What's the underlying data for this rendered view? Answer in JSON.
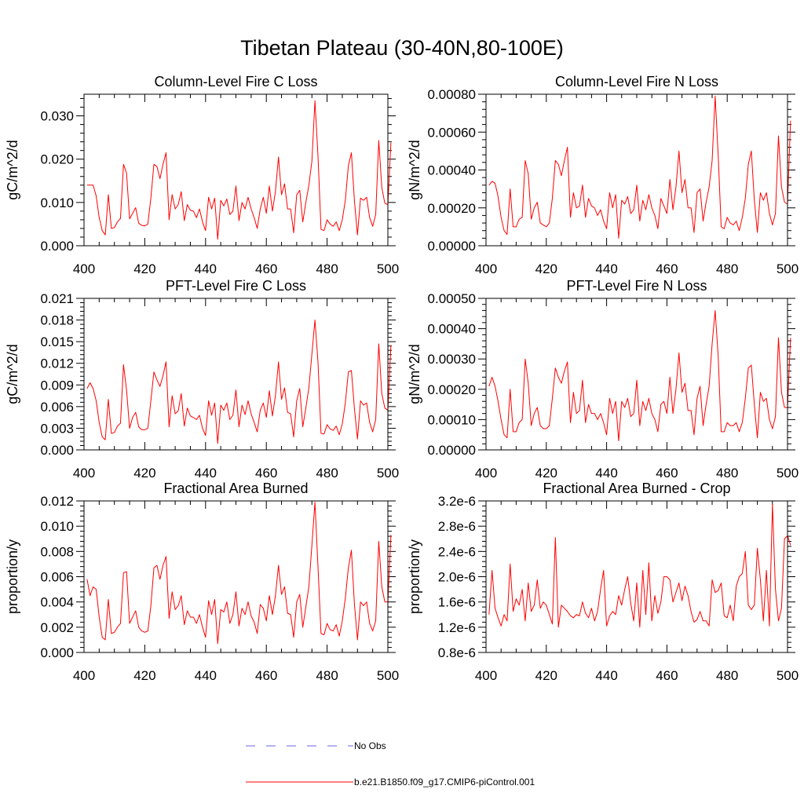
{
  "title": "Tibetan Plateau (30-40N,80-100E)",
  "colors": {
    "model": "#ff0000",
    "obs": "#6a6adf",
    "axis": "#000000"
  },
  "legend": {
    "obs_label": "No Obs",
    "model_label": "b.e21.B1850.f09_g17.CMIP6-piControl.001"
  },
  "chart_data": [
    {
      "type": "line",
      "title": "Column-Level Fire C Loss",
      "xlabel": "",
      "ylabel": "gC/m^2/d",
      "xlim": [
        400,
        500
      ],
      "ylim": [
        0,
        0.035
      ],
      "xticks": [
        400,
        420,
        440,
        460,
        480,
        500
      ],
      "xtick_labels": [
        "400",
        "420",
        "440",
        "460",
        "480",
        "500"
      ],
      "yticks": [
        0,
        0.01,
        0.02,
        0.03
      ],
      "ytick_labels": [
        "0.000",
        "0.010",
        "0.020",
        "0.030"
      ],
      "series": [
        {
          "name": "b.e21.B1850.f09_g17.CMIP6-piControl.001",
          "x_start": 401,
          "values": [
            0.014,
            0.014,
            0.014,
            0.0115,
            0.0065,
            0.0035,
            0.0025,
            0.0118,
            0.004,
            0.0042,
            0.0055,
            0.0063,
            0.0188,
            0.0168,
            0.0062,
            0.0075,
            0.0088,
            0.0052,
            0.0047,
            0.0046,
            0.005,
            0.011,
            0.0188,
            0.0183,
            0.0155,
            0.0188,
            0.0215,
            0.006,
            0.0118,
            0.0085,
            0.0095,
            0.0125,
            0.0058,
            0.0095,
            0.0082,
            0.008,
            0.0065,
            0.0085,
            0.0055,
            0.0035,
            0.0112,
            0.0085,
            0.011,
            0.0015,
            0.0105,
            0.0092,
            0.0108,
            0.0072,
            0.008,
            0.0138,
            0.0058,
            0.01,
            0.0085,
            0.0112,
            0.0085,
            0.0065,
            0.004,
            0.0085,
            0.0112,
            0.0075,
            0.0138,
            0.008,
            0.0125,
            0.0205,
            0.0118,
            0.0143,
            0.0085,
            0.0085,
            0.003,
            0.0118,
            0.0128,
            0.0055,
            0.01,
            0.014,
            0.0195,
            0.0335,
            0.0208,
            0.0038,
            0.0035,
            0.006,
            0.005,
            0.0045,
            0.0055,
            0.0035,
            0.006,
            0.0105,
            0.0185,
            0.0215,
            0.0103,
            0.0025,
            0.011,
            0.0105,
            0.0112,
            0.0065,
            0.0045,
            0.0072,
            0.0243,
            0.0135,
            0.0098,
            0.0095,
            0.0238
          ]
        }
      ]
    },
    {
      "type": "line",
      "title": "Column-Level Fire N Loss",
      "xlabel": "",
      "ylabel": "gN/m^2/d",
      "xlim": [
        400,
        500
      ],
      "ylim": [
        0,
        0.0008
      ],
      "xticks": [
        400,
        420,
        440,
        460,
        480,
        500
      ],
      "xtick_labels": [
        "400",
        "420",
        "440",
        "460",
        "480",
        "500"
      ],
      "yticks": [
        0,
        0.0002,
        0.0004,
        0.0006,
        0.0008
      ],
      "ytick_labels": [
        "0.00000",
        "0.00020",
        "0.00040",
        "0.00060",
        "0.00080"
      ],
      "series": [
        {
          "name": "b.e21.B1850.f09_g17.CMIP6-piControl.001",
          "x_start": 401,
          "values": [
            0.00032,
            0.00034,
            0.00033,
            0.00026,
            0.00015,
            8e-05,
            6e-05,
            0.0003,
            0.0001,
            0.0001,
            0.00014,
            0.00015,
            0.00045,
            0.00038,
            0.00014,
            0.0002,
            0.00023,
            0.00012,
            0.00011,
            0.0001,
            0.00012,
            0.00025,
            0.00045,
            0.00043,
            0.00037,
            0.00045,
            0.00052,
            0.00015,
            0.00028,
            0.0002,
            0.00021,
            0.00032,
            0.00015,
            0.00025,
            0.00021,
            0.0002,
            0.00016,
            0.00019,
            0.00013,
            9e-05,
            0.00028,
            0.0002,
            0.00027,
            4e-05,
            0.00024,
            0.00022,
            0.00026,
            0.00017,
            0.00019,
            0.00032,
            0.00013,
            0.00024,
            0.00019,
            0.00027,
            0.0002,
            0.00016,
            9e-05,
            0.00025,
            0.00021,
            0.00017,
            0.00035,
            0.00019,
            0.00031,
            0.0005,
            0.00028,
            0.00035,
            0.0002,
            0.0002,
            7e-05,
            0.00028,
            0.0003,
            0.00013,
            0.00023,
            0.00031,
            0.00045,
            0.00079,
            0.00048,
            0.0001,
            9e-05,
            0.00015,
            0.00012,
            0.00011,
            0.00013,
            8e-05,
            0.00015,
            0.00025,
            0.00043,
            0.0005,
            0.00024,
            7e-05,
            0.00028,
            0.00024,
            0.00028,
            0.00017,
            0.00011,
            0.00017,
            0.00058,
            0.00031,
            0.00023,
            0.00022,
            0.00066
          ]
        }
      ]
    },
    {
      "type": "line",
      "title": "PFT-Level Fire C Loss",
      "xlabel": "",
      "ylabel": "gC/m^2/d",
      "xlim": [
        400,
        500
      ],
      "ylim": [
        0,
        0.021
      ],
      "xticks": [
        400,
        420,
        440,
        460,
        480,
        500
      ],
      "xtick_labels": [
        "400",
        "420",
        "440",
        "460",
        "480",
        "500"
      ],
      "yticks": [
        0,
        0.003,
        0.006,
        0.009,
        0.012,
        0.015,
        0.018,
        0.021
      ],
      "ytick_labels": [
        "0.000",
        "0.003",
        "0.006",
        "0.009",
        "0.012",
        "0.015",
        "0.018",
        "0.021"
      ],
      "series": [
        {
          "name": "b.e21.B1850.f09_g17.CMIP6-piControl.001",
          "x_start": 401,
          "values": [
            0.0085,
            0.0093,
            0.0085,
            0.0068,
            0.0038,
            0.0018,
            0.0014,
            0.007,
            0.0023,
            0.0024,
            0.0033,
            0.0037,
            0.0118,
            0.0083,
            0.003,
            0.0045,
            0.0052,
            0.0032,
            0.0028,
            0.0028,
            0.003,
            0.0068,
            0.0108,
            0.0097,
            0.0088,
            0.0103,
            0.0122,
            0.0032,
            0.0075,
            0.005,
            0.0054,
            0.0078,
            0.0033,
            0.0058,
            0.0047,
            0.0045,
            0.0042,
            0.0048,
            0.003,
            0.002,
            0.0068,
            0.0048,
            0.0065,
            0.0009,
            0.0062,
            0.0055,
            0.0065,
            0.0042,
            0.0048,
            0.0083,
            0.0032,
            0.0062,
            0.0049,
            0.0068,
            0.005,
            0.0038,
            0.0025,
            0.0055,
            0.0065,
            0.0045,
            0.0082,
            0.0047,
            0.0075,
            0.0122,
            0.007,
            0.0086,
            0.0052,
            0.005,
            0.0018,
            0.0068,
            0.0085,
            0.0032,
            0.0058,
            0.0086,
            0.0133,
            0.018,
            0.0122,
            0.0023,
            0.0022,
            0.0035,
            0.0029,
            0.0027,
            0.0033,
            0.0021,
            0.0036,
            0.0065,
            0.0108,
            0.011,
            0.0057,
            0.0015,
            0.0068,
            0.0062,
            0.0065,
            0.0038,
            0.0025,
            0.0042,
            0.0147,
            0.0078,
            0.0058,
            0.0055,
            0.0145
          ]
        }
      ]
    },
    {
      "type": "line",
      "title": "PFT-Level Fire N Loss",
      "xlabel": "",
      "ylabel": "gN/m^2/d",
      "xlim": [
        400,
        500
      ],
      "ylim": [
        0,
        0.0005
      ],
      "xticks": [
        400,
        420,
        440,
        460,
        480,
        500
      ],
      "xtick_labels": [
        "400",
        "420",
        "440",
        "460",
        "480",
        "500"
      ],
      "yticks": [
        0,
        0.0001,
        0.0002,
        0.0003,
        0.0004,
        0.0005
      ],
      "ytick_labels": [
        "0.00000",
        "0.00010",
        "0.00020",
        "0.00030",
        "0.00040",
        "0.00050"
      ],
      "series": [
        {
          "name": "b.e21.B1850.f09_g17.CMIP6-piControl.001",
          "x_start": 401,
          "values": [
            0.00021,
            0.00024,
            0.00021,
            0.00016,
            0.0001,
            5e-05,
            4e-05,
            0.0002,
            6e-05,
            6e-05,
            9e-05,
            0.0001,
            0.0003,
            0.00022,
            8e-05,
            0.00012,
            0.00014,
            8e-05,
            7e-05,
            7e-05,
            8e-05,
            0.00017,
            0.00027,
            0.00024,
            0.00022,
            0.00026,
            0.00029,
            9e-05,
            0.00019,
            0.00012,
            0.00013,
            0.00023,
            9e-05,
            0.00015,
            0.00012,
            0.00012,
            0.0001,
            0.00012,
            9e-05,
            5e-05,
            0.00017,
            0.00012,
            0.00016,
            3e-05,
            0.00016,
            0.00014,
            0.00017,
            0.00011,
            0.00012,
            0.00023,
            8e-05,
            0.00016,
            0.00013,
            0.00017,
            0.00012,
            0.0001,
            6e-05,
            0.00015,
            0.00016,
            0.00012,
            0.00024,
            0.00012,
            0.0002,
            0.00032,
            0.00019,
            0.00022,
            0.00013,
            0.00013,
            5e-05,
            0.00017,
            0.00021,
            8e-05,
            0.00015,
            0.00021,
            0.00035,
            0.00046,
            0.00031,
            6e-05,
            6e-05,
            9e-05,
            8e-05,
            8e-05,
            9e-05,
            6e-05,
            9e-05,
            0.00017,
            0.00027,
            0.00028,
            0.00015,
            4e-05,
            0.00019,
            0.00016,
            0.00017,
            0.0001,
            7e-05,
            0.00011,
            0.00037,
            0.00019,
            0.00014,
            0.00014,
            0.00037
          ]
        }
      ]
    },
    {
      "type": "line",
      "title": "Fractional Area Burned",
      "xlabel": "",
      "ylabel": "proportion/y",
      "xlim": [
        400,
        500
      ],
      "ylim": [
        0,
        0.012
      ],
      "xticks": [
        400,
        420,
        440,
        460,
        480,
        500
      ],
      "xtick_labels": [
        "400",
        "420",
        "440",
        "460",
        "480",
        "500"
      ],
      "yticks": [
        0,
        0.002,
        0.004,
        0.006,
        0.008,
        0.01,
        0.012
      ],
      "ytick_labels": [
        "0.000",
        "0.002",
        "0.004",
        "0.006",
        "0.008",
        "0.010",
        "0.012"
      ],
      "series": [
        {
          "name": "b.e21.B1850.f09_g17.CMIP6-piControl.001",
          "x_start": 401,
          "values": [
            0.0058,
            0.0045,
            0.0052,
            0.005,
            0.0028,
            0.0012,
            0.001,
            0.0042,
            0.0015,
            0.0016,
            0.002,
            0.0023,
            0.0063,
            0.0064,
            0.0023,
            0.0028,
            0.0033,
            0.002,
            0.0017,
            0.0016,
            0.0017,
            0.0037,
            0.0067,
            0.0069,
            0.0058,
            0.0069,
            0.0076,
            0.0027,
            0.0048,
            0.0034,
            0.0037,
            0.0045,
            0.0022,
            0.0033,
            0.0028,
            0.0028,
            0.0023,
            0.003,
            0.002,
            0.0012,
            0.0041,
            0.003,
            0.0042,
            0.0007,
            0.0034,
            0.0032,
            0.004,
            0.0023,
            0.003,
            0.0048,
            0.0021,
            0.0035,
            0.003,
            0.004,
            0.0029,
            0.0024,
            0.0015,
            0.0038,
            0.0035,
            0.0025,
            0.0045,
            0.003,
            0.0045,
            0.0069,
            0.0046,
            0.0052,
            0.0031,
            0.003,
            0.0012,
            0.004,
            0.0046,
            0.002,
            0.0036,
            0.0052,
            0.0085,
            0.0119,
            0.0068,
            0.0015,
            0.0014,
            0.0023,
            0.0018,
            0.0017,
            0.0022,
            0.0013,
            0.0025,
            0.0043,
            0.0067,
            0.0081,
            0.0038,
            0.001,
            0.004,
            0.0037,
            0.004,
            0.0023,
            0.0017,
            0.0025,
            0.0088,
            0.0052,
            0.004,
            0.004,
            0.0093
          ]
        }
      ]
    },
    {
      "type": "line",
      "title": "Fractional Area Burned - Crop",
      "xlabel": "",
      "ylabel": "proportion/y",
      "xlim": [
        400,
        500
      ],
      "ylim": [
        8e-07,
        3.2e-06
      ],
      "xticks": [
        400,
        420,
        440,
        460,
        480,
        500
      ],
      "xtick_labels": [
        "400",
        "420",
        "440",
        "460",
        "480",
        "500"
      ],
      "yticks": [
        8e-07,
        1.2e-06,
        1.6e-06,
        2e-06,
        2.4e-06,
        2.8e-06,
        3.2e-06
      ],
      "ytick_labels": [
        "0.8e-6",
        "1.2e-6",
        "1.6e-6",
        "2.0e-6",
        "2.4e-6",
        "2.8e-6",
        "3.2e-6"
      ],
      "series": [
        {
          "name": "b.e21.B1850.f09_g17.CMIP6-piControl.001",
          "x_start": 401,
          "values": [
            1.4e-06,
            2.1e-06,
            1.5e-06,
            1.35e-06,
            1.22e-06,
            1.4e-06,
            1.3e-06,
            2.2e-06,
            1.45e-06,
            1.65e-06,
            1.55e-06,
            1.8e-06,
            1.3e-06,
            1.9e-06,
            1.45e-06,
            1.55e-06,
            1.95e-06,
            1.5e-06,
            1.6e-06,
            1.55e-06,
            1.4e-06,
            1.25e-06,
            2.62e-06,
            1.2e-06,
            1.55e-06,
            1.5e-06,
            1.45e-06,
            1.38e-06,
            1.35e-06,
            1.4e-06,
            1.38e-06,
            1.6e-06,
            1.42e-06,
            1.35e-06,
            1.5e-06,
            1.3e-06,
            1.45e-06,
            1.8e-06,
            2.1e-06,
            1.22e-06,
            1.38e-06,
            1.45e-06,
            1.4e-06,
            1.7e-06,
            1.55e-06,
            1.8e-06,
            2e-06,
            1.58e-06,
            1.3e-06,
            1.9e-06,
            1.2e-06,
            2.1e-06,
            1.4e-06,
            2.22e-06,
            1.3e-06,
            1.7e-06,
            1.42e-06,
            1.6e-06,
            2e-06,
            2e-06,
            1.95e-06,
            1.6e-06,
            1.75e-06,
            1.9e-06,
            1.62e-06,
            1.85e-06,
            1.7e-06,
            1.45e-06,
            1.28e-06,
            1.32e-06,
            1.45e-06,
            1.3e-06,
            1.3e-06,
            1.22e-06,
            1.95e-06,
            1.75e-06,
            1.78e-06,
            1.9e-06,
            1.38e-06,
            1.35e-06,
            1.55e-06,
            1.3e-06,
            1.85e-06,
            2e-06,
            2.05e-06,
            2.4e-06,
            1.55e-06,
            1.48e-06,
            1.55e-06,
            2.45e-06,
            1.95e-06,
            1.3e-06,
            2.1e-06,
            1.22e-06,
            3.15e-06,
            1.8e-06,
            1.3e-06,
            1.5e-06,
            2.6e-06,
            2.65e-06,
            2.5e-06
          ]
        }
      ]
    }
  ]
}
